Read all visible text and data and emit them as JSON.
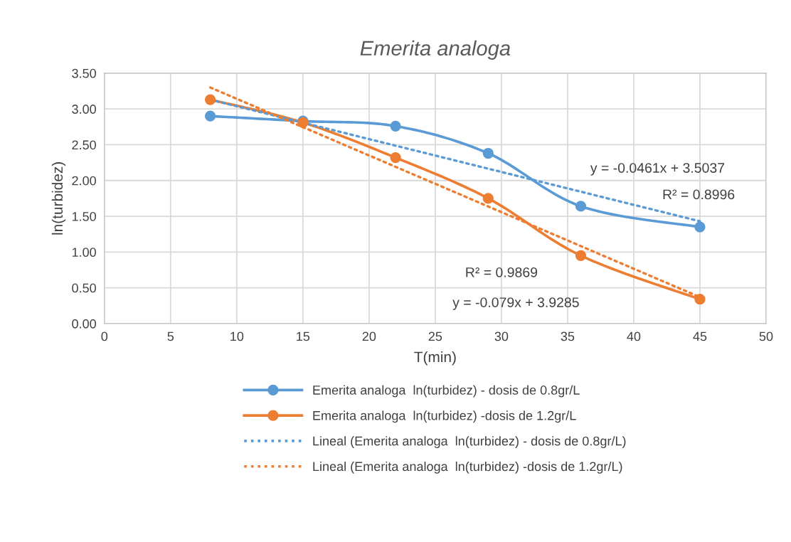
{
  "chart_data": {
    "type": "line",
    "title": "Emerita analoga",
    "xlabel": "T(min)",
    "ylabel": "ln(turbidez)",
    "xlim": [
      0,
      50
    ],
    "xticks": [
      0,
      5,
      10,
      15,
      20,
      25,
      30,
      35,
      40,
      45,
      50
    ],
    "ylim": [
      0,
      3.5
    ],
    "yticks": [
      {
        "value": 0,
        "label": "0.00"
      },
      {
        "value": 0.5,
        "label": "0.50"
      },
      {
        "value": 1,
        "label": "1.00"
      },
      {
        "value": 1.5,
        "label": "1.50"
      },
      {
        "value": 2,
        "label": "2.00"
      },
      {
        "value": 2.5,
        "label": "2.50"
      },
      {
        "value": 3,
        "label": "3.00"
      },
      {
        "value": 3.5,
        "label": "3.50"
      }
    ],
    "grid": true,
    "legend": "bottom",
    "series": [
      {
        "name": "Emerita analoga  ln(turbidez) - dosis de 0.8gr/L",
        "color": "#5b9bd5",
        "marker": "circle",
        "line_style": "solid",
        "x": [
          8,
          15,
          22,
          29,
          36,
          45
        ],
        "values": [
          2.9,
          2.83,
          2.76,
          2.38,
          1.64,
          1.35
        ]
      },
      {
        "name": "Emerita analoga  ln(turbidez) -dosis de 1.2gr/L",
        "color": "#ed7d31",
        "marker": "circle",
        "line_style": "solid",
        "x": [
          8,
          15,
          22,
          29,
          36,
          45
        ],
        "values": [
          3.13,
          2.81,
          2.32,
          1.75,
          0.95,
          0.34
        ]
      },
      {
        "name": "Lineal (Emerita analoga  ln(turbidez) - dosis de 0.8gr/L)",
        "color": "#5b9bd5",
        "marker": "none",
        "line_style": "dotted",
        "x": [
          8,
          45
        ],
        "values": [
          3.13,
          1.43
        ]
      },
      {
        "name": "Lineal (Emerita analoga  ln(turbidez) -dosis de 1.2gr/L)",
        "color": "#ed7d31",
        "marker": "none",
        "line_style": "dotted",
        "x": [
          8,
          45
        ],
        "values": [
          3.3,
          0.37
        ]
      }
    ],
    "annotations": [
      "y = -0.0461x + 3.5037",
      "R² = 0.8996",
      "R² = 0.9869",
      "y = -0.079x + 3.9285"
    ]
  }
}
